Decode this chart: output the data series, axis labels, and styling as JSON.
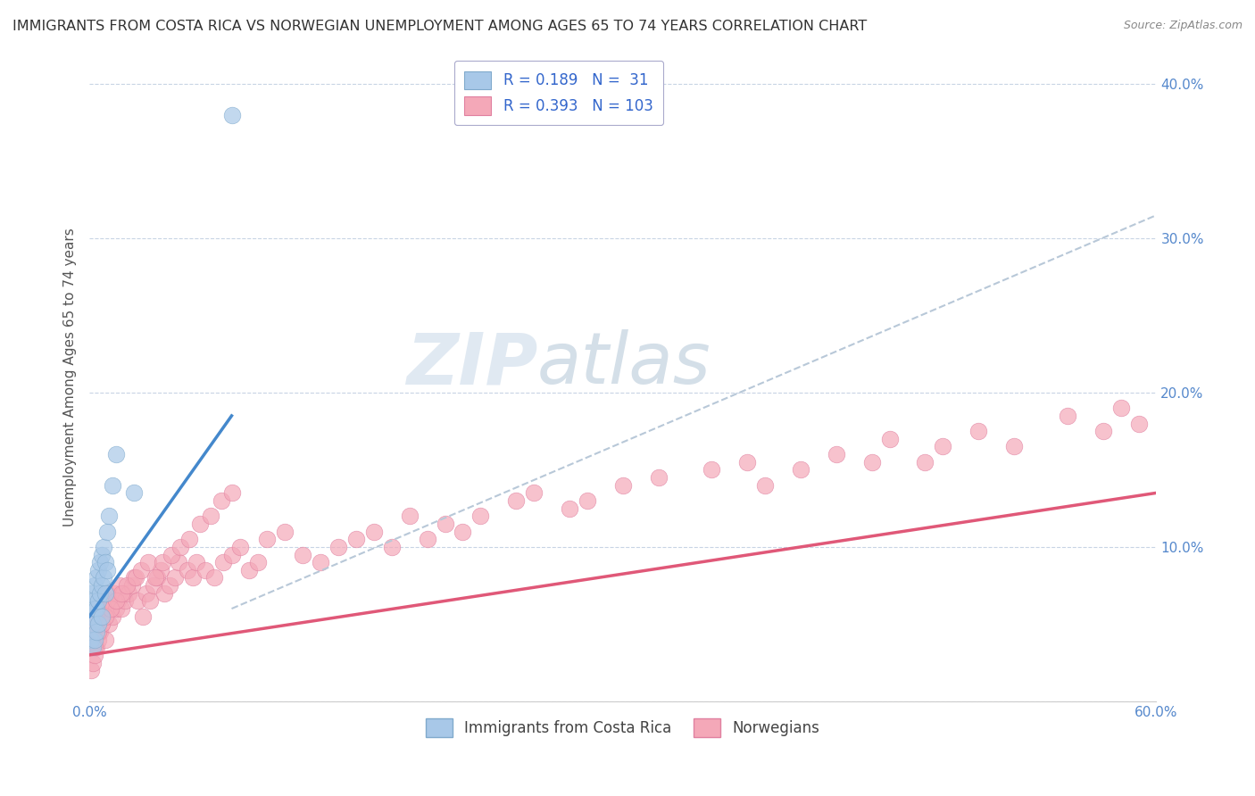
{
  "title": "IMMIGRANTS FROM COSTA RICA VS NORWEGIAN UNEMPLOYMENT AMONG AGES 65 TO 74 YEARS CORRELATION CHART",
  "source": "Source: ZipAtlas.com",
  "ylabel": "Unemployment Among Ages 65 to 74 years",
  "legend_v1": "0.189",
  "legend_nv1": " 31",
  "legend_v2": "0.393",
  "legend_nv2": "103",
  "legend_label1": "Immigrants from Costa Rica",
  "legend_label2": "Norwegians",
  "blue_color": "#a8c8e8",
  "pink_color": "#f4a8b8",
  "line_blue": "#4488cc",
  "line_pink": "#e05878",
  "line_dashed": "#b8c8d8",
  "watermark_color": "#d0dce8",
  "background_color": "#ffffff",
  "grid_color": "#c8d4e4",
  "tick_color": "#5588cc",
  "title_color": "#333333",
  "source_color": "#888888",
  "xlim": [
    0.0,
    0.6
  ],
  "ylim": [
    0.0,
    0.42
  ],
  "costa_rica_x": [
    0.001,
    0.001,
    0.001,
    0.002,
    0.002,
    0.002,
    0.003,
    0.003,
    0.003,
    0.004,
    0.004,
    0.004,
    0.005,
    0.005,
    0.005,
    0.006,
    0.006,
    0.007,
    0.007,
    0.007,
    0.008,
    0.008,
    0.009,
    0.009,
    0.01,
    0.01,
    0.011,
    0.013,
    0.015,
    0.025,
    0.08
  ],
  "costa_rica_y": [
    0.04,
    0.055,
    0.07,
    0.035,
    0.05,
    0.065,
    0.04,
    0.06,
    0.075,
    0.045,
    0.06,
    0.08,
    0.05,
    0.065,
    0.085,
    0.07,
    0.09,
    0.055,
    0.075,
    0.095,
    0.08,
    0.1,
    0.07,
    0.09,
    0.085,
    0.11,
    0.12,
    0.14,
    0.16,
    0.135,
    0.38
  ],
  "norwegians_x": [
    0.001,
    0.002,
    0.002,
    0.003,
    0.003,
    0.004,
    0.004,
    0.005,
    0.005,
    0.006,
    0.007,
    0.008,
    0.009,
    0.01,
    0.01,
    0.011,
    0.012,
    0.013,
    0.014,
    0.015,
    0.016,
    0.017,
    0.018,
    0.019,
    0.02,
    0.022,
    0.024,
    0.025,
    0.027,
    0.03,
    0.032,
    0.034,
    0.036,
    0.038,
    0.04,
    0.042,
    0.045,
    0.048,
    0.05,
    0.055,
    0.058,
    0.06,
    0.065,
    0.07,
    0.075,
    0.08,
    0.085,
    0.09,
    0.095,
    0.1,
    0.11,
    0.12,
    0.13,
    0.14,
    0.15,
    0.16,
    0.17,
    0.18,
    0.19,
    0.2,
    0.21,
    0.22,
    0.24,
    0.25,
    0.27,
    0.28,
    0.3,
    0.32,
    0.35,
    0.37,
    0.38,
    0.4,
    0.42,
    0.44,
    0.45,
    0.47,
    0.48,
    0.5,
    0.52,
    0.55,
    0.57,
    0.58,
    0.59,
    0.003,
    0.005,
    0.007,
    0.009,
    0.012,
    0.015,
    0.018,
    0.021,
    0.026,
    0.029,
    0.033,
    0.037,
    0.041,
    0.046,
    0.051,
    0.056,
    0.062,
    0.068,
    0.074,
    0.08
  ],
  "norwegians_y": [
    0.02,
    0.025,
    0.04,
    0.03,
    0.05,
    0.035,
    0.055,
    0.04,
    0.06,
    0.045,
    0.05,
    0.055,
    0.04,
    0.06,
    0.07,
    0.05,
    0.065,
    0.055,
    0.07,
    0.06,
    0.065,
    0.075,
    0.06,
    0.07,
    0.065,
    0.07,
    0.075,
    0.08,
    0.065,
    0.055,
    0.07,
    0.065,
    0.075,
    0.08,
    0.085,
    0.07,
    0.075,
    0.08,
    0.09,
    0.085,
    0.08,
    0.09,
    0.085,
    0.08,
    0.09,
    0.095,
    0.1,
    0.085,
    0.09,
    0.105,
    0.11,
    0.095,
    0.09,
    0.1,
    0.105,
    0.11,
    0.1,
    0.12,
    0.105,
    0.115,
    0.11,
    0.12,
    0.13,
    0.135,
    0.125,
    0.13,
    0.14,
    0.145,
    0.15,
    0.155,
    0.14,
    0.15,
    0.16,
    0.155,
    0.17,
    0.155,
    0.165,
    0.175,
    0.165,
    0.185,
    0.175,
    0.19,
    0.18,
    0.035,
    0.045,
    0.05,
    0.055,
    0.06,
    0.065,
    0.07,
    0.075,
    0.08,
    0.085,
    0.09,
    0.08,
    0.09,
    0.095,
    0.1,
    0.105,
    0.115,
    0.12,
    0.13,
    0.135
  ],
  "blue_line_x0": 0.0,
  "blue_line_y0": 0.055,
  "blue_line_x1": 0.08,
  "blue_line_y1": 0.185,
  "pink_line_x0": 0.0,
  "pink_line_y0": 0.03,
  "pink_line_x1": 0.6,
  "pink_line_y1": 0.135,
  "dash_line_x0": 0.08,
  "dash_line_y0": 0.06,
  "dash_line_x1": 0.6,
  "dash_line_y1": 0.315
}
